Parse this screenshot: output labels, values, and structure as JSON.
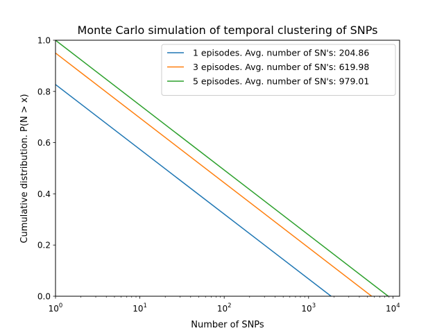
{
  "chart_data": {
    "type": "line",
    "title": "Monte Carlo simulation of temporal clustering of SNPs",
    "xlabel": "Number of SNPs",
    "ylabel": "Cumulative distribution. P(N > x)",
    "xscale": "log",
    "xlim": [
      1,
      12000
    ],
    "ylim": [
      0.0,
      1.0
    ],
    "x_ticks": [
      {
        "value": 1,
        "base": "10",
        "exp": "0"
      },
      {
        "value": 10,
        "base": "10",
        "exp": "1"
      },
      {
        "value": 100,
        "base": "10",
        "exp": "2"
      },
      {
        "value": 1000,
        "base": "10",
        "exp": "3"
      },
      {
        "value": 10000,
        "base": "10",
        "exp": "4"
      }
    ],
    "y_ticks": [
      "0.0",
      "0.2",
      "0.4",
      "0.6",
      "0.8",
      "1.0"
    ],
    "grid": false,
    "legend_position": "top-right",
    "series": [
      {
        "name": "1 episodes. Avg. number of SN's: 204.86",
        "color": "#1f77b4",
        "x": [
          1,
          1850
        ],
        "y": [
          0.827,
          0.0
        ]
      },
      {
        "name": "3 episodes. Avg. number of SN's: 619.98",
        "color": "#ff7f0e",
        "x": [
          1,
          5600
        ],
        "y": [
          0.95,
          0.0
        ]
      },
      {
        "name": "5 episodes. Avg. number of SN's: 979.01",
        "color": "#2ca02c",
        "x": [
          1,
          8800
        ],
        "y": [
          1.0,
          0.0
        ]
      }
    ]
  }
}
